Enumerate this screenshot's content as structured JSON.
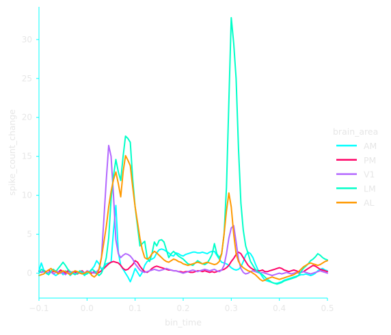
{
  "chart_data": {
    "type": "line",
    "title": "",
    "xlabel": "bin_time",
    "ylabel": "spike_count_change",
    "xlim": [
      -0.1,
      0.5
    ],
    "ylim": [
      -3.2,
      34.2
    ],
    "x_ticks": [
      -0.1,
      0.0,
      0.1,
      0.2,
      0.3,
      0.4,
      0.5
    ],
    "x_tick_labels": [
      "−0.1",
      "0.0",
      "0.1",
      "0.2",
      "0.3",
      "0.4",
      "0.5"
    ],
    "y_ticks": [
      0,
      5,
      10,
      15,
      20,
      25,
      30
    ],
    "y_tick_labels": [
      "0",
      "5",
      "10",
      "15",
      "20",
      "25",
      "30"
    ],
    "grid": false,
    "axis_color": "#00ffff",
    "text_color": "#e6e6e6",
    "legend": {
      "title": "brain_area",
      "position": "right"
    },
    "x": [
      -0.1,
      -0.095,
      -0.09,
      -0.085,
      -0.08,
      -0.075,
      -0.07,
      -0.065,
      -0.06,
      -0.055,
      -0.05,
      -0.045,
      -0.04,
      -0.035,
      -0.03,
      -0.025,
      -0.02,
      -0.015,
      -0.01,
      -0.005,
      0.0,
      0.005,
      0.01,
      0.015,
      0.02,
      0.025,
      0.03,
      0.035,
      0.04,
      0.045,
      0.05,
      0.055,
      0.06,
      0.065,
      0.07,
      0.075,
      0.08,
      0.085,
      0.09,
      0.095,
      0.1,
      0.105,
      0.11,
      0.115,
      0.12,
      0.125,
      0.13,
      0.135,
      0.14,
      0.145,
      0.15,
      0.155,
      0.16,
      0.165,
      0.17,
      0.175,
      0.18,
      0.185,
      0.19,
      0.195,
      0.2,
      0.205,
      0.21,
      0.215,
      0.22,
      0.225,
      0.23,
      0.235,
      0.24,
      0.245,
      0.25,
      0.255,
      0.26,
      0.265,
      0.27,
      0.275,
      0.28,
      0.285,
      0.29,
      0.295,
      0.3,
      0.305,
      0.31,
      0.315,
      0.32,
      0.325,
      0.33,
      0.335,
      0.34,
      0.345,
      0.35,
      0.355,
      0.36,
      0.365,
      0.37,
      0.375,
      0.38,
      0.385,
      0.39,
      0.395,
      0.4,
      0.405,
      0.41,
      0.415,
      0.42,
      0.425,
      0.43,
      0.435,
      0.44,
      0.445,
      0.45,
      0.455,
      0.46,
      0.465,
      0.47,
      0.475,
      0.48,
      0.485,
      0.49,
      0.495,
      0.5
    ],
    "series": [
      {
        "name": "AM",
        "color": "#00ffff",
        "values": [
          0.3,
          1.3,
          0.4,
          0.1,
          -0.2,
          0.2,
          -0.1,
          -0.3,
          -0.1,
          0.2,
          -0.2,
          0.3,
          0.1,
          -0.3,
          0.0,
          0.2,
          -0.1,
          0.1,
          0.0,
          -0.3,
          0.2,
          0.0,
          0.5,
          0.9,
          1.6,
          1.2,
          0.5,
          0.8,
          1.2,
          1.3,
          1.4,
          5.4,
          8.7,
          2.7,
          1.0,
          0.5,
          0.0,
          -0.5,
          -1.1,
          -0.3,
          0.6,
          0.1,
          -0.4,
          0.1,
          1.0,
          1.5,
          1.7,
          1.8,
          2.0,
          2.6,
          3.0,
          3.1,
          3.0,
          2.8,
          2.6,
          2.3,
          2.2,
          2.6,
          2.5,
          2.3,
          2.2,
          2.4,
          2.5,
          2.6,
          2.7,
          2.7,
          2.6,
          2.6,
          2.7,
          2.6,
          2.5,
          2.7,
          2.8,
          2.8,
          2.3,
          1.8,
          1.4,
          1.3,
          1.2,
          1.0,
          0.7,
          0.5,
          0.4,
          0.5,
          0.8,
          1.5,
          2.3,
          2.7,
          2.5,
          2.0,
          1.2,
          0.5,
          0.0,
          -0.5,
          -0.9,
          -1.0,
          -1.1,
          -1.2,
          -1.3,
          -1.3,
          -1.2,
          -1.1,
          -0.9,
          -0.8,
          -0.7,
          -0.6,
          -0.5,
          -0.4,
          -0.3,
          -0.2,
          -0.2,
          -0.1,
          -0.2,
          -0.3,
          -0.2,
          0.0,
          0.3,
          0.5,
          0.6,
          0.4,
          0.3
        ]
      },
      {
        "name": "PM",
        "color": "#ff0066",
        "values": [
          0.2,
          0.1,
          0.3,
          0.2,
          0.4,
          0.1,
          0.2,
          0.3,
          0.1,
          0.4,
          0.2,
          0.0,
          0.3,
          0.2,
          0.1,
          0.2,
          -0.1,
          0.2,
          0.3,
          0.0,
          0.2,
          0.1,
          0.0,
          0.2,
          -0.1,
          0.1,
          0.3,
          0.6,
          0.9,
          1.2,
          1.4,
          1.5,
          1.4,
          1.3,
          1.0,
          0.6,
          0.4,
          0.5,
          0.8,
          1.1,
          1.6,
          1.4,
          0.9,
          0.5,
          0.2,
          0.1,
          0.3,
          0.6,
          0.8,
          0.9,
          0.8,
          0.7,
          0.6,
          0.5,
          0.4,
          0.4,
          0.3,
          0.3,
          0.2,
          0.2,
          0.1,
          0.2,
          0.2,
          0.1,
          0.1,
          0.2,
          0.3,
          0.3,
          0.2,
          0.3,
          0.2,
          0.1,
          0.2,
          0.1,
          0.2,
          0.3,
          0.4,
          0.5,
          0.7,
          1.0,
          1.5,
          1.9,
          2.4,
          2.7,
          2.5,
          2.0,
          1.5,
          1.0,
          0.7,
          0.5,
          0.4,
          0.3,
          0.3,
          0.4,
          0.2,
          0.2,
          0.3,
          0.4,
          0.5,
          0.6,
          0.7,
          0.6,
          0.4,
          0.3,
          0.2,
          0.3,
          0.4,
          0.3,
          0.2,
          0.1,
          0.2,
          0.4,
          0.6,
          0.8,
          1.0,
          0.9,
          0.7,
          0.5,
          0.4,
          0.3,
          0.2
        ]
      },
      {
        "name": "V1",
        "color": "#b266ff",
        "values": [
          0.3,
          0.1,
          0.2,
          0.0,
          0.1,
          0.2,
          -0.1,
          0.1,
          0.2,
          0.0,
          0.1,
          -0.2,
          0.1,
          0.0,
          0.2,
          -0.1,
          0.0,
          0.1,
          0.2,
          0.0,
          0.3,
          0.2,
          0.1,
          0.0,
          0.2,
          0.5,
          2.0,
          7.0,
          12.0,
          16.4,
          15.0,
          10.0,
          4.3,
          2.5,
          2.0,
          2.3,
          2.5,
          2.4,
          2.2,
          1.8,
          1.2,
          0.8,
          0.4,
          0.2,
          0.1,
          0.2,
          0.3,
          0.4,
          0.5,
          0.4,
          0.3,
          0.4,
          0.5,
          0.6,
          0.5,
          0.4,
          0.3,
          0.3,
          0.2,
          0.1,
          0.0,
          0.1,
          0.2,
          0.3,
          0.4,
          0.3,
          0.2,
          0.3,
          0.4,
          0.5,
          0.4,
          0.3,
          0.4,
          0.5,
          0.3,
          0.2,
          0.4,
          1.0,
          2.5,
          4.5,
          5.8,
          6.1,
          4.0,
          1.8,
          0.6,
          0.1,
          -0.1,
          0.0,
          0.2,
          0.3,
          0.2,
          0.1,
          0.0,
          0.1,
          0.0,
          -0.1,
          -0.2,
          -0.3,
          -0.2,
          -0.1,
          0.0,
          -0.1,
          0.0,
          0.1,
          0.0,
          -0.1,
          0.0,
          0.1,
          0.0,
          0.1,
          0.2,
          0.1,
          0.0,
          -0.1,
          0.0,
          0.1,
          0.2,
          0.3,
          0.2,
          0.1,
          0.0
        ]
      },
      {
        "name": "LM",
        "color": "#00ffc8",
        "values": [
          0.0,
          0.5,
          0.3,
          0.0,
          -0.2,
          0.3,
          0.5,
          0.2,
          0.6,
          1.0,
          1.4,
          1.0,
          0.5,
          0.2,
          0.0,
          -0.2,
          0.0,
          0.3,
          0.1,
          -0.2,
          -0.1,
          0.2,
          0.5,
          0.3,
          0.0,
          -0.3,
          0.0,
          0.8,
          2.0,
          4.5,
          9.5,
          12.5,
          14.6,
          13.0,
          11.9,
          15.0,
          17.6,
          17.3,
          16.8,
          12.0,
          8.5,
          6.0,
          3.5,
          3.8,
          4.1,
          2.0,
          1.5,
          2.5,
          4.0,
          3.5,
          4.2,
          4.3,
          4.0,
          3.0,
          2.0,
          2.5,
          2.8,
          2.5,
          2.2,
          2.0,
          1.8,
          1.5,
          1.2,
          1.1,
          1.0,
          1.3,
          1.6,
          1.4,
          1.2,
          1.1,
          1.3,
          1.8,
          2.4,
          3.8,
          2.5,
          2.0,
          2.5,
          5.0,
          11.0,
          22.0,
          32.8,
          29.5,
          25.0,
          16.0,
          9.0,
          5.5,
          3.5,
          2.5,
          1.5,
          1.0,
          0.5,
          0.2,
          0.0,
          -0.2,
          -0.5,
          -0.8,
          -1.0,
          -1.2,
          -1.3,
          -1.4,
          -1.3,
          -1.2,
          -1.0,
          -0.9,
          -0.8,
          -0.7,
          -0.6,
          -0.5,
          -0.3,
          0.2,
          0.6,
          0.9,
          1.2,
          1.6,
          1.8,
          2.1,
          2.5,
          2.3,
          2.0,
          1.8,
          1.7
        ]
      },
      {
        "name": "AL",
        "color": "#ff9900",
        "values": [
          -0.3,
          -0.2,
          -0.1,
          0.2,
          0.4,
          0.6,
          0.3,
          0.2,
          -0.1,
          0.1,
          0.3,
          0.2,
          0.0,
          -0.2,
          0.1,
          0.3,
          0.2,
          0.0,
          -0.1,
          0.0,
          0.2,
          0.1,
          -0.3,
          -0.5,
          -0.2,
          0.5,
          2.0,
          4.0,
          6.0,
          8.5,
          10.5,
          12.0,
          13.0,
          11.5,
          9.8,
          13.0,
          15.1,
          14.5,
          13.8,
          11.0,
          8.5,
          6.5,
          4.5,
          3.0,
          2.0,
          1.8,
          2.0,
          2.5,
          2.8,
          2.6,
          2.3,
          2.0,
          1.7,
          1.5,
          1.4,
          1.6,
          1.8,
          1.7,
          1.5,
          1.4,
          1.2,
          1.1,
          1.0,
          1.1,
          1.2,
          1.3,
          1.4,
          1.3,
          1.2,
          1.3,
          1.4,
          1.3,
          1.2,
          1.1,
          1.2,
          1.5,
          2.5,
          5.0,
          8.0,
          10.3,
          8.5,
          5.0,
          2.5,
          1.5,
          1.0,
          0.7,
          0.5,
          0.3,
          0.2,
          0.0,
          -0.2,
          -0.5,
          -0.8,
          -1.0,
          -0.9,
          -0.7,
          -0.6,
          -0.5,
          -0.6,
          -0.7,
          -0.8,
          -0.7,
          -0.6,
          -0.5,
          -0.4,
          -0.3,
          -0.2,
          0.0,
          0.2,
          0.5,
          0.8,
          1.0,
          1.2,
          1.3,
          1.2,
          1.1,
          1.0,
          1.1,
          1.3,
          1.5,
          1.6
        ]
      }
    ]
  }
}
